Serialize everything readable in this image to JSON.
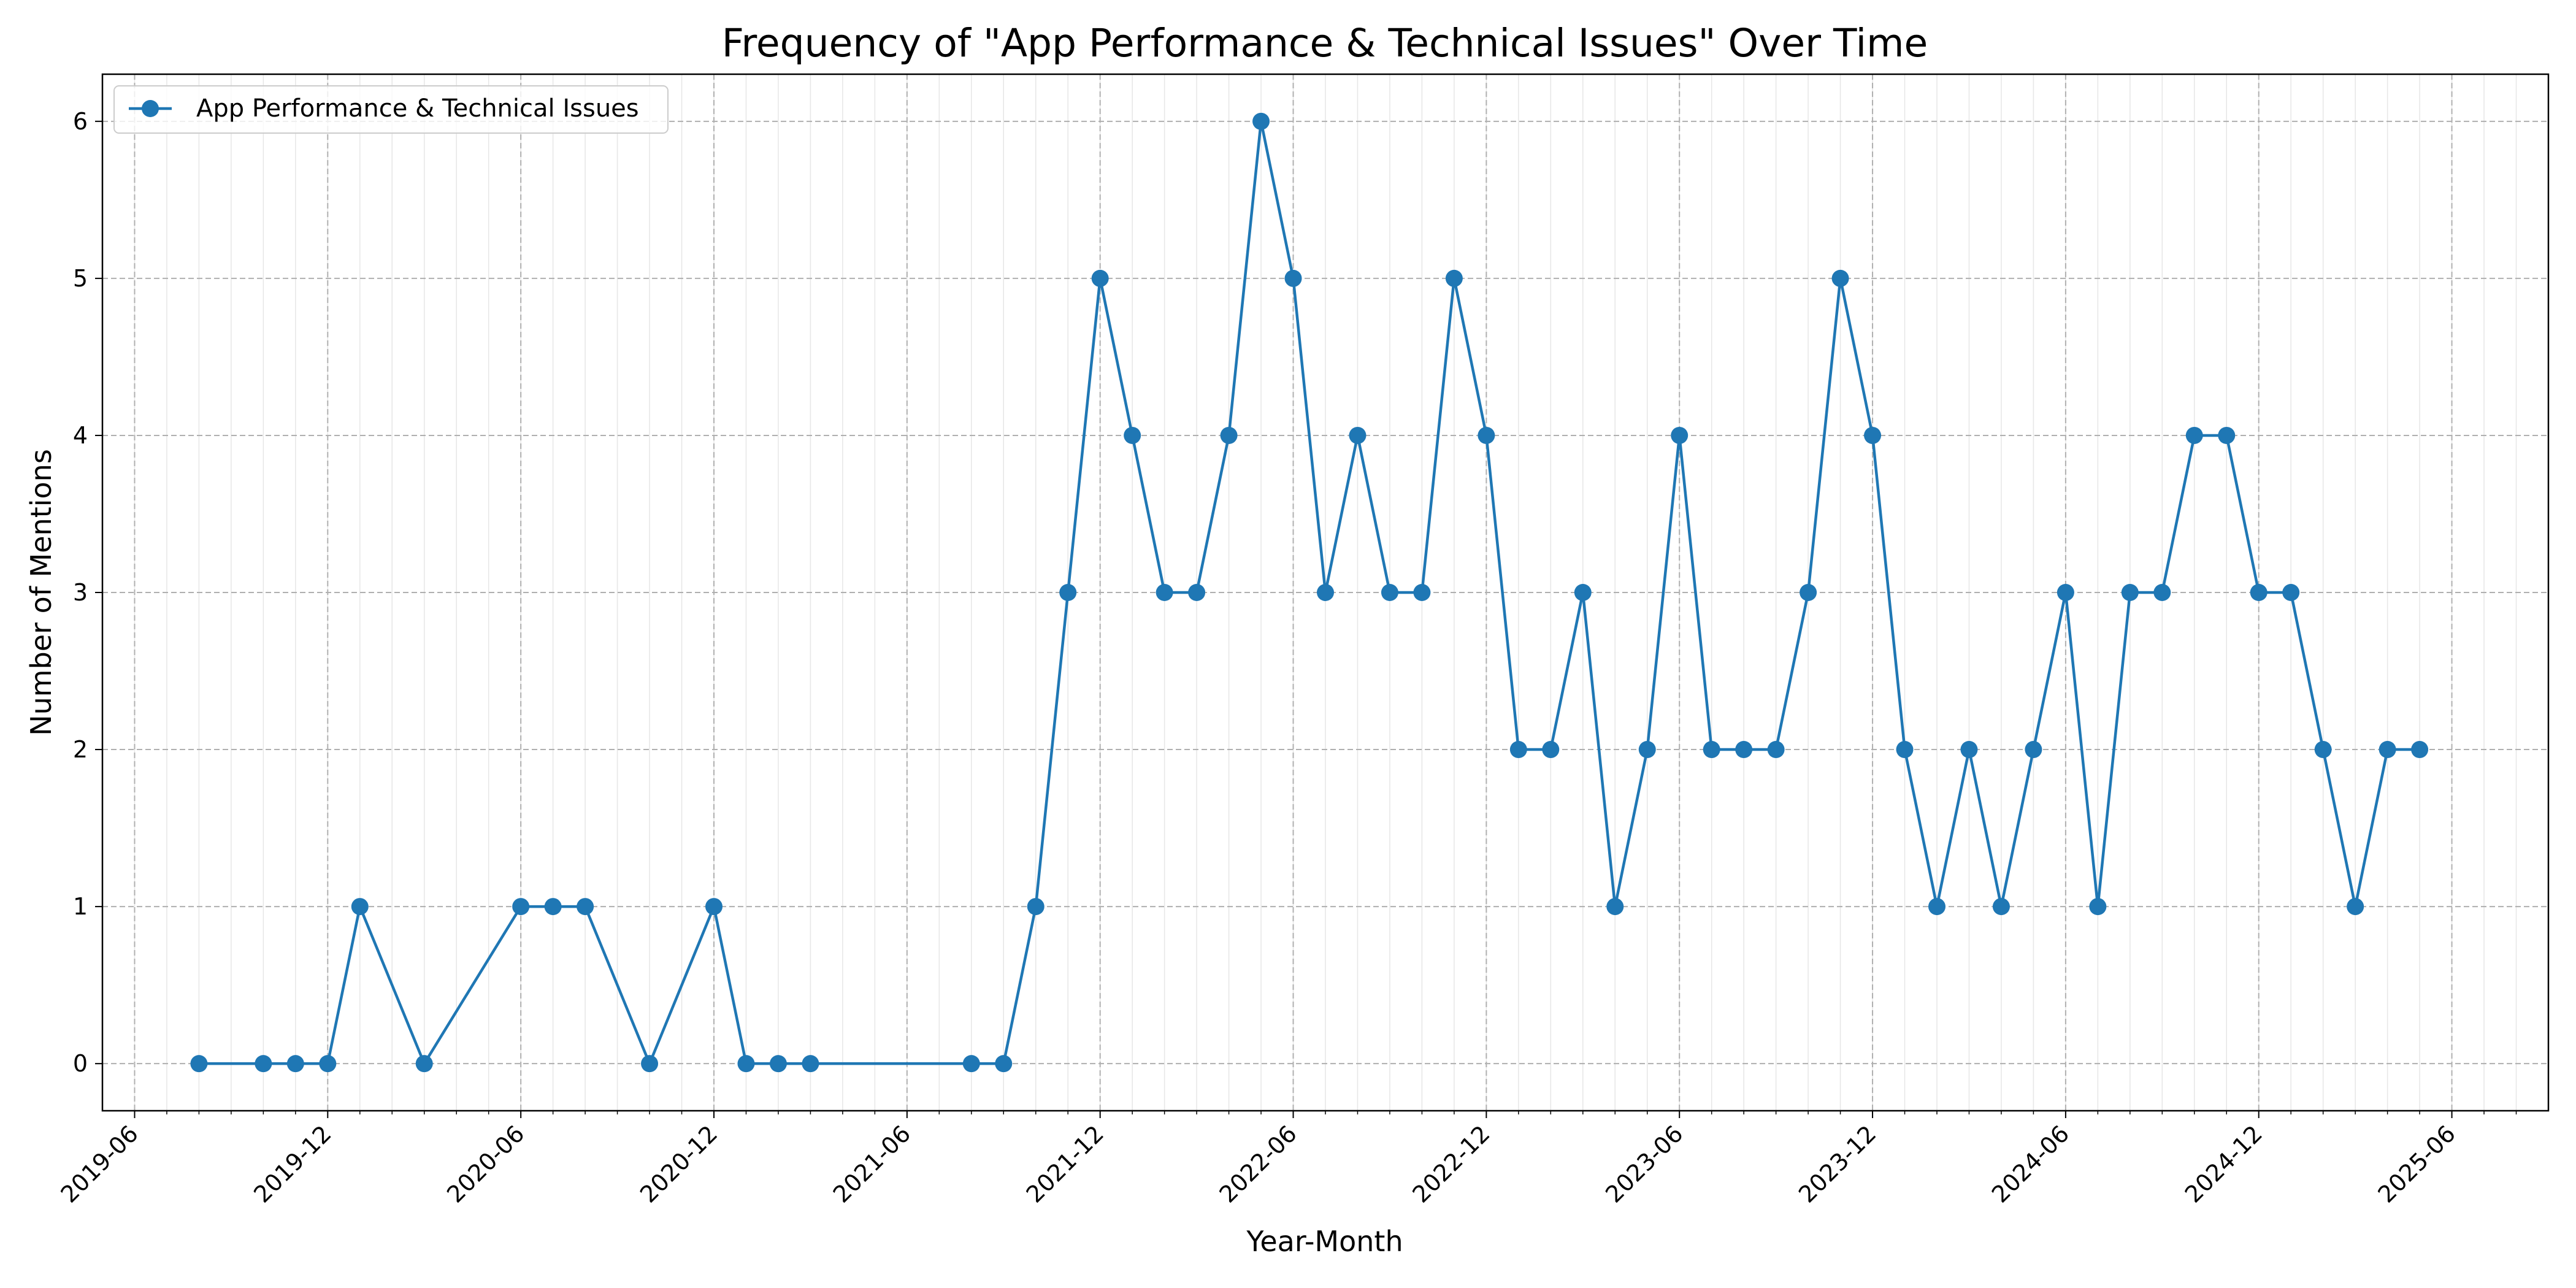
{
  "chart_data": {
    "type": "line",
    "title": "Frequency of \"App Performance & Technical Issues\" Over Time",
    "xlabel": "Year-Month",
    "ylabel": "Number of Mentions",
    "xlim": [
      "2019-05",
      "2025-09"
    ],
    "ylim": [
      -0.3,
      6.3
    ],
    "x_ticks": [
      "2019-06",
      "2019-12",
      "2020-06",
      "2020-12",
      "2021-06",
      "2021-12",
      "2022-06",
      "2022-12",
      "2023-06",
      "2023-12",
      "2024-06",
      "2024-12",
      "2025-06"
    ],
    "y_ticks": [
      0,
      1,
      2,
      3,
      4,
      5,
      6
    ],
    "grid": true,
    "minor_grid": "monthly",
    "legend_position": "upper-left",
    "colors": {
      "series": "#1f77b4",
      "grid": "#b0b0b0",
      "minor_grid": "#e6e6e6"
    },
    "series": [
      {
        "name": "App Performance & Technical Issues",
        "marker": "circle",
        "x": [
          "2019-08",
          "2019-10",
          "2019-11",
          "2019-12",
          "2020-01",
          "2020-03",
          "2020-06",
          "2020-07",
          "2020-08",
          "2020-10",
          "2020-12",
          "2021-01",
          "2021-02",
          "2021-03",
          "2021-08",
          "2021-09",
          "2021-10",
          "2021-11",
          "2021-12",
          "2022-01",
          "2022-02",
          "2022-03",
          "2022-04",
          "2022-05",
          "2022-06",
          "2022-07",
          "2022-08",
          "2022-09",
          "2022-10",
          "2022-11",
          "2022-12",
          "2023-01",
          "2023-02",
          "2023-03",
          "2023-04",
          "2023-05",
          "2023-06",
          "2023-07",
          "2023-08",
          "2023-09",
          "2023-10",
          "2023-11",
          "2023-12",
          "2024-01",
          "2024-02",
          "2024-03",
          "2024-04",
          "2024-05",
          "2024-06",
          "2024-07",
          "2024-08",
          "2024-09",
          "2024-10",
          "2024-11",
          "2024-12",
          "2025-01",
          "2025-02",
          "2025-03",
          "2025-04",
          "2025-05"
        ],
        "values": [
          0,
          0,
          0,
          0,
          1,
          0,
          1,
          1,
          1,
          0,
          1,
          0,
          0,
          0,
          0,
          0,
          1,
          3,
          5,
          4,
          3,
          3,
          4,
          6,
          5,
          3,
          4,
          3,
          3,
          5,
          4,
          2,
          2,
          3,
          1,
          2,
          4,
          2,
          2,
          2,
          3,
          5,
          4,
          2,
          1,
          2,
          1,
          2,
          3,
          1,
          3,
          3,
          4,
          4,
          3,
          3,
          2,
          1,
          2,
          2
        ]
      }
    ]
  }
}
